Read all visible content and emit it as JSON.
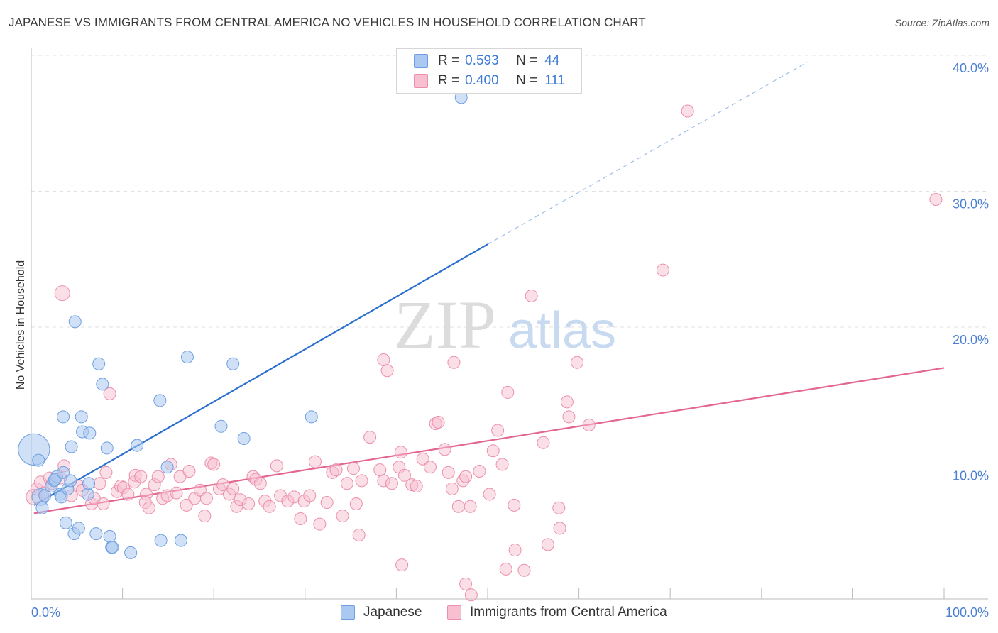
{
  "title": "JAPANESE VS IMMIGRANTS FROM CENTRAL AMERICA NO VEHICLES IN HOUSEHOLD CORRELATION CHART",
  "source": "Source: ZipAtlas.com",
  "watermark": {
    "zip": "ZIP",
    "atlas": "atlas"
  },
  "colors": {
    "japanese_fill": "#aac8f0",
    "japanese_stroke": "#6f9fe0",
    "japanese_line": "#2a6fcf",
    "immigrants_fill": "#f7bfd0",
    "immigrants_stroke": "#eb8fad",
    "immigrants_line": "#e36690",
    "axis_tick_text": "#4a7fd4"
  },
  "legend_top": {
    "rows": [
      {
        "r_label": "R =",
        "r_value": "0.593",
        "n_label": "N =",
        "n_value": "44"
      },
      {
        "r_label": "R =",
        "r_value": "0.400",
        "n_label": "N =",
        "n_value": "111"
      }
    ]
  },
  "legend_bottom": {
    "items": [
      {
        "label": "Japanese"
      },
      {
        "label": "Immigrants from Central America"
      }
    ]
  },
  "chart_data": {
    "type": "scatter",
    "title": "JAPANESE VS IMMIGRANTS FROM CENTRAL AMERICA NO VEHICLES IN HOUSEHOLD CORRELATION CHART",
    "xlabel": "",
    "ylabel": "No Vehicles in Household",
    "xlim": [
      0,
      100
    ],
    "ylim": [
      0,
      40
    ],
    "x_tick_labels": [
      "0.0%",
      "100.0%"
    ],
    "y_tick_labels": [
      "10.0%",
      "20.0%",
      "30.0%",
      "40.0%"
    ],
    "y_ticks": [
      10,
      20,
      30,
      40
    ],
    "grid": true,
    "legend_position": "top-center",
    "series": [
      {
        "name": "Japanese",
        "r": 0.593,
        "n": 44,
        "trend": {
          "x0": 0.3,
          "y0": 6.9,
          "x1": 50,
          "y1": 26.1,
          "dashed_to_x": 85,
          "dashed_to_y": 39.5
        },
        "points": [
          [
            0.3,
            11,
            2.6
          ],
          [
            0.8,
            10.2,
            1
          ],
          [
            1,
            7.5,
            1.4
          ],
          [
            1.2,
            6.7,
            1
          ],
          [
            1.5,
            7.6,
            1
          ],
          [
            2.2,
            8.3,
            1
          ],
          [
            2.5,
            8.7,
            1
          ],
          [
            2.8,
            9,
            1
          ],
          [
            2.6,
            8.8,
            1
          ],
          [
            3.2,
            7.7,
            1
          ],
          [
            3.5,
            9.3,
            1
          ],
          [
            3.3,
            7.5,
            1
          ],
          [
            4,
            8.1,
            1
          ],
          [
            3.8,
            5.6,
            1
          ],
          [
            4.3,
            8.7,
            1
          ],
          [
            4.7,
            4.8,
            1
          ],
          [
            5.2,
            5.2,
            1
          ],
          [
            6.2,
            7.7,
            1
          ],
          [
            6.3,
            8.5,
            1
          ],
          [
            7.1,
            4.8,
            1
          ],
          [
            8.6,
            4.6,
            1
          ],
          [
            8.8,
            3.8,
            1
          ],
          [
            8.9,
            3.8,
            1
          ],
          [
            10.9,
            3.4,
            1
          ],
          [
            4.4,
            11.2,
            1
          ],
          [
            5.6,
            12.3,
            1
          ],
          [
            3.5,
            13.4,
            1
          ],
          [
            5.5,
            13.4,
            1
          ],
          [
            6.4,
            12.2,
            1
          ],
          [
            8.3,
            11.1,
            1
          ],
          [
            7.8,
            15.8,
            1
          ],
          [
            7.4,
            17.3,
            1
          ],
          [
            11.6,
            11.3,
            1
          ],
          [
            14.1,
            14.6,
            1
          ],
          [
            14.2,
            4.3,
            1
          ],
          [
            14.9,
            9.7,
            1
          ],
          [
            16.4,
            4.3,
            1
          ],
          [
            17.1,
            17.8,
            1
          ],
          [
            20.8,
            12.7,
            1
          ],
          [
            22.1,
            17.3,
            1
          ],
          [
            23.3,
            11.8,
            1
          ],
          [
            30.7,
            13.4,
            1
          ],
          [
            47.1,
            36.9,
            1
          ],
          [
            4.8,
            20.4,
            1
          ]
        ]
      },
      {
        "name": "Immigrants from Central America",
        "r": 0.4,
        "n": 111,
        "trend": {
          "x0": 0.3,
          "y0": 6.3,
          "x1": 100,
          "y1": 17
        },
        "points": [
          [
            0.3,
            7.5,
            1.3
          ],
          [
            0.6,
            8.1,
            1
          ],
          [
            1,
            8.6,
            1
          ],
          [
            1.4,
            7.8,
            1
          ],
          [
            2,
            8.9,
            1
          ],
          [
            2.3,
            8.5,
            1
          ],
          [
            3.2,
            8.9,
            1
          ],
          [
            3.6,
            9.8,
            1
          ],
          [
            4.4,
            7.6,
            1
          ],
          [
            5.2,
            8.3,
            1
          ],
          [
            5.6,
            8,
            1
          ],
          [
            6.6,
            7,
            1
          ],
          [
            6.9,
            7.4,
            1
          ],
          [
            7.5,
            8.5,
            1
          ],
          [
            7.9,
            7,
            1
          ],
          [
            8.2,
            9.3,
            1
          ],
          [
            8.6,
            15.1,
            1
          ],
          [
            9.4,
            7.9,
            1
          ],
          [
            9.8,
            8.3,
            1
          ],
          [
            10.1,
            8.2,
            1
          ],
          [
            10.6,
            7.7,
            1
          ],
          [
            11.3,
            8.6,
            1
          ],
          [
            11.4,
            9.1,
            1
          ],
          [
            12,
            9,
            1
          ],
          [
            12.6,
            7.7,
            1
          ],
          [
            12.5,
            7.1,
            1
          ],
          [
            12.9,
            6.7,
            1
          ],
          [
            13.5,
            8.4,
            1
          ],
          [
            13.9,
            9,
            1
          ],
          [
            14.4,
            7.4,
            1
          ],
          [
            14.9,
            7.6,
            1
          ],
          [
            15.3,
            9.9,
            1
          ],
          [
            15.9,
            7.8,
            1
          ],
          [
            16.3,
            9,
            1
          ],
          [
            17,
            6.9,
            1
          ],
          [
            17.3,
            9.4,
            1
          ],
          [
            17.9,
            7.4,
            1
          ],
          [
            18.5,
            8,
            1
          ],
          [
            19,
            6.1,
            1
          ],
          [
            19.2,
            7.4,
            1
          ],
          [
            19.7,
            10,
            1
          ],
          [
            20,
            9.9,
            1
          ],
          [
            20.6,
            8.1,
            1
          ],
          [
            21,
            8.4,
            1
          ],
          [
            21.7,
            7.7,
            1
          ],
          [
            22.1,
            8.1,
            1
          ],
          [
            22.5,
            6.8,
            1
          ],
          [
            22.9,
            7.3,
            1
          ],
          [
            23.8,
            7,
            1
          ],
          [
            24.3,
            9,
            1
          ],
          [
            24.6,
            8.8,
            1
          ],
          [
            25.1,
            8.5,
            1
          ],
          [
            25.6,
            7.2,
            1
          ],
          [
            26.1,
            6.8,
            1
          ],
          [
            26.9,
            9.8,
            1
          ],
          [
            27.3,
            7.6,
            1
          ],
          [
            28.1,
            7.2,
            1
          ],
          [
            28.8,
            7.5,
            1
          ],
          [
            29.5,
            5.9,
            1
          ],
          [
            29.9,
            7.2,
            1
          ],
          [
            30.5,
            7.6,
            1
          ],
          [
            31.1,
            10.1,
            1
          ],
          [
            31.6,
            5.5,
            1
          ],
          [
            32.4,
            7.1,
            1
          ],
          [
            33,
            9.3,
            1
          ],
          [
            33.4,
            9.5,
            1
          ],
          [
            34.1,
            6.1,
            1
          ],
          [
            34.6,
            8.5,
            1
          ],
          [
            35.3,
            9.6,
            1
          ],
          [
            35.6,
            7,
            1
          ],
          [
            36.2,
            8.7,
            1
          ],
          [
            37.1,
            11.9,
            1
          ],
          [
            38.2,
            9.5,
            1
          ],
          [
            38.6,
            8.7,
            1
          ],
          [
            39.5,
            8.5,
            1
          ],
          [
            40.3,
            9.7,
            1
          ],
          [
            40.5,
            10.8,
            1
          ],
          [
            40.9,
            9.1,
            1
          ],
          [
            41.7,
            8.4,
            1
          ],
          [
            42.2,
            8.3,
            1
          ],
          [
            42.9,
            10.3,
            1
          ],
          [
            43.7,
            9.7,
            1
          ],
          [
            44.3,
            12.9,
            1
          ],
          [
            44.6,
            13,
            1
          ],
          [
            45.3,
            11,
            1
          ],
          [
            45.7,
            9.3,
            1
          ],
          [
            46.1,
            8.1,
            1
          ],
          [
            46.8,
            6.8,
            1
          ],
          [
            47.3,
            8.7,
            1
          ],
          [
            47.6,
            9,
            1
          ],
          [
            48.1,
            6.8,
            1
          ],
          [
            49.1,
            9.4,
            1
          ],
          [
            50.2,
            7.7,
            1
          ],
          [
            50.6,
            10.9,
            1
          ],
          [
            51.1,
            12.4,
            1
          ],
          [
            51.6,
            9.9,
            1
          ],
          [
            52.2,
            15.2,
            1
          ],
          [
            52.9,
            6.9,
            1
          ],
          [
            53,
            3.6,
            1
          ],
          [
            54,
            2.1,
            1
          ],
          [
            56.1,
            11.5,
            1
          ],
          [
            56.6,
            4,
            1
          ],
          [
            57.8,
            6.7,
            1
          ],
          [
            57.9,
            5.2,
            1
          ],
          [
            58.9,
            13.4,
            1
          ],
          [
            61.1,
            12.8,
            1
          ],
          [
            69.2,
            24.2,
            1
          ],
          [
            71.9,
            35.9,
            1
          ],
          [
            99.1,
            29.4,
            1
          ]
        ]
      }
    ],
    "extra_large_points": [
      {
        "series": "Immigrants from Central America",
        "x": 3.4,
        "y": 22.5
      },
      {
        "series": "Immigrants from Central America",
        "x": 38.6,
        "y": 17.6
      },
      {
        "series": "Immigrants from Central America",
        "x": 39,
        "y": 16.8
      },
      {
        "series": "Immigrants from Central America",
        "x": 46.3,
        "y": 17.4
      },
      {
        "series": "Immigrants from Central America",
        "x": 54.8,
        "y": 22.3
      },
      {
        "series": "Immigrants from Central America",
        "x": 58.7,
        "y": 14.5
      },
      {
        "series": "Immigrants from Central America",
        "x": 59.8,
        "y": 17.4
      },
      {
        "series": "Immigrants from Central America",
        "x": 48.2,
        "y": 0.3
      },
      {
        "series": "Immigrants from Central America",
        "x": 40.6,
        "y": 2.5
      },
      {
        "series": "Immigrants from Central America",
        "x": 52,
        "y": 2.2
      },
      {
        "series": "Immigrants from Central America",
        "x": 47.6,
        "y": 1.1
      },
      {
        "series": "Immigrants from Central America",
        "x": 35.9,
        "y": 4.7
      }
    ]
  }
}
